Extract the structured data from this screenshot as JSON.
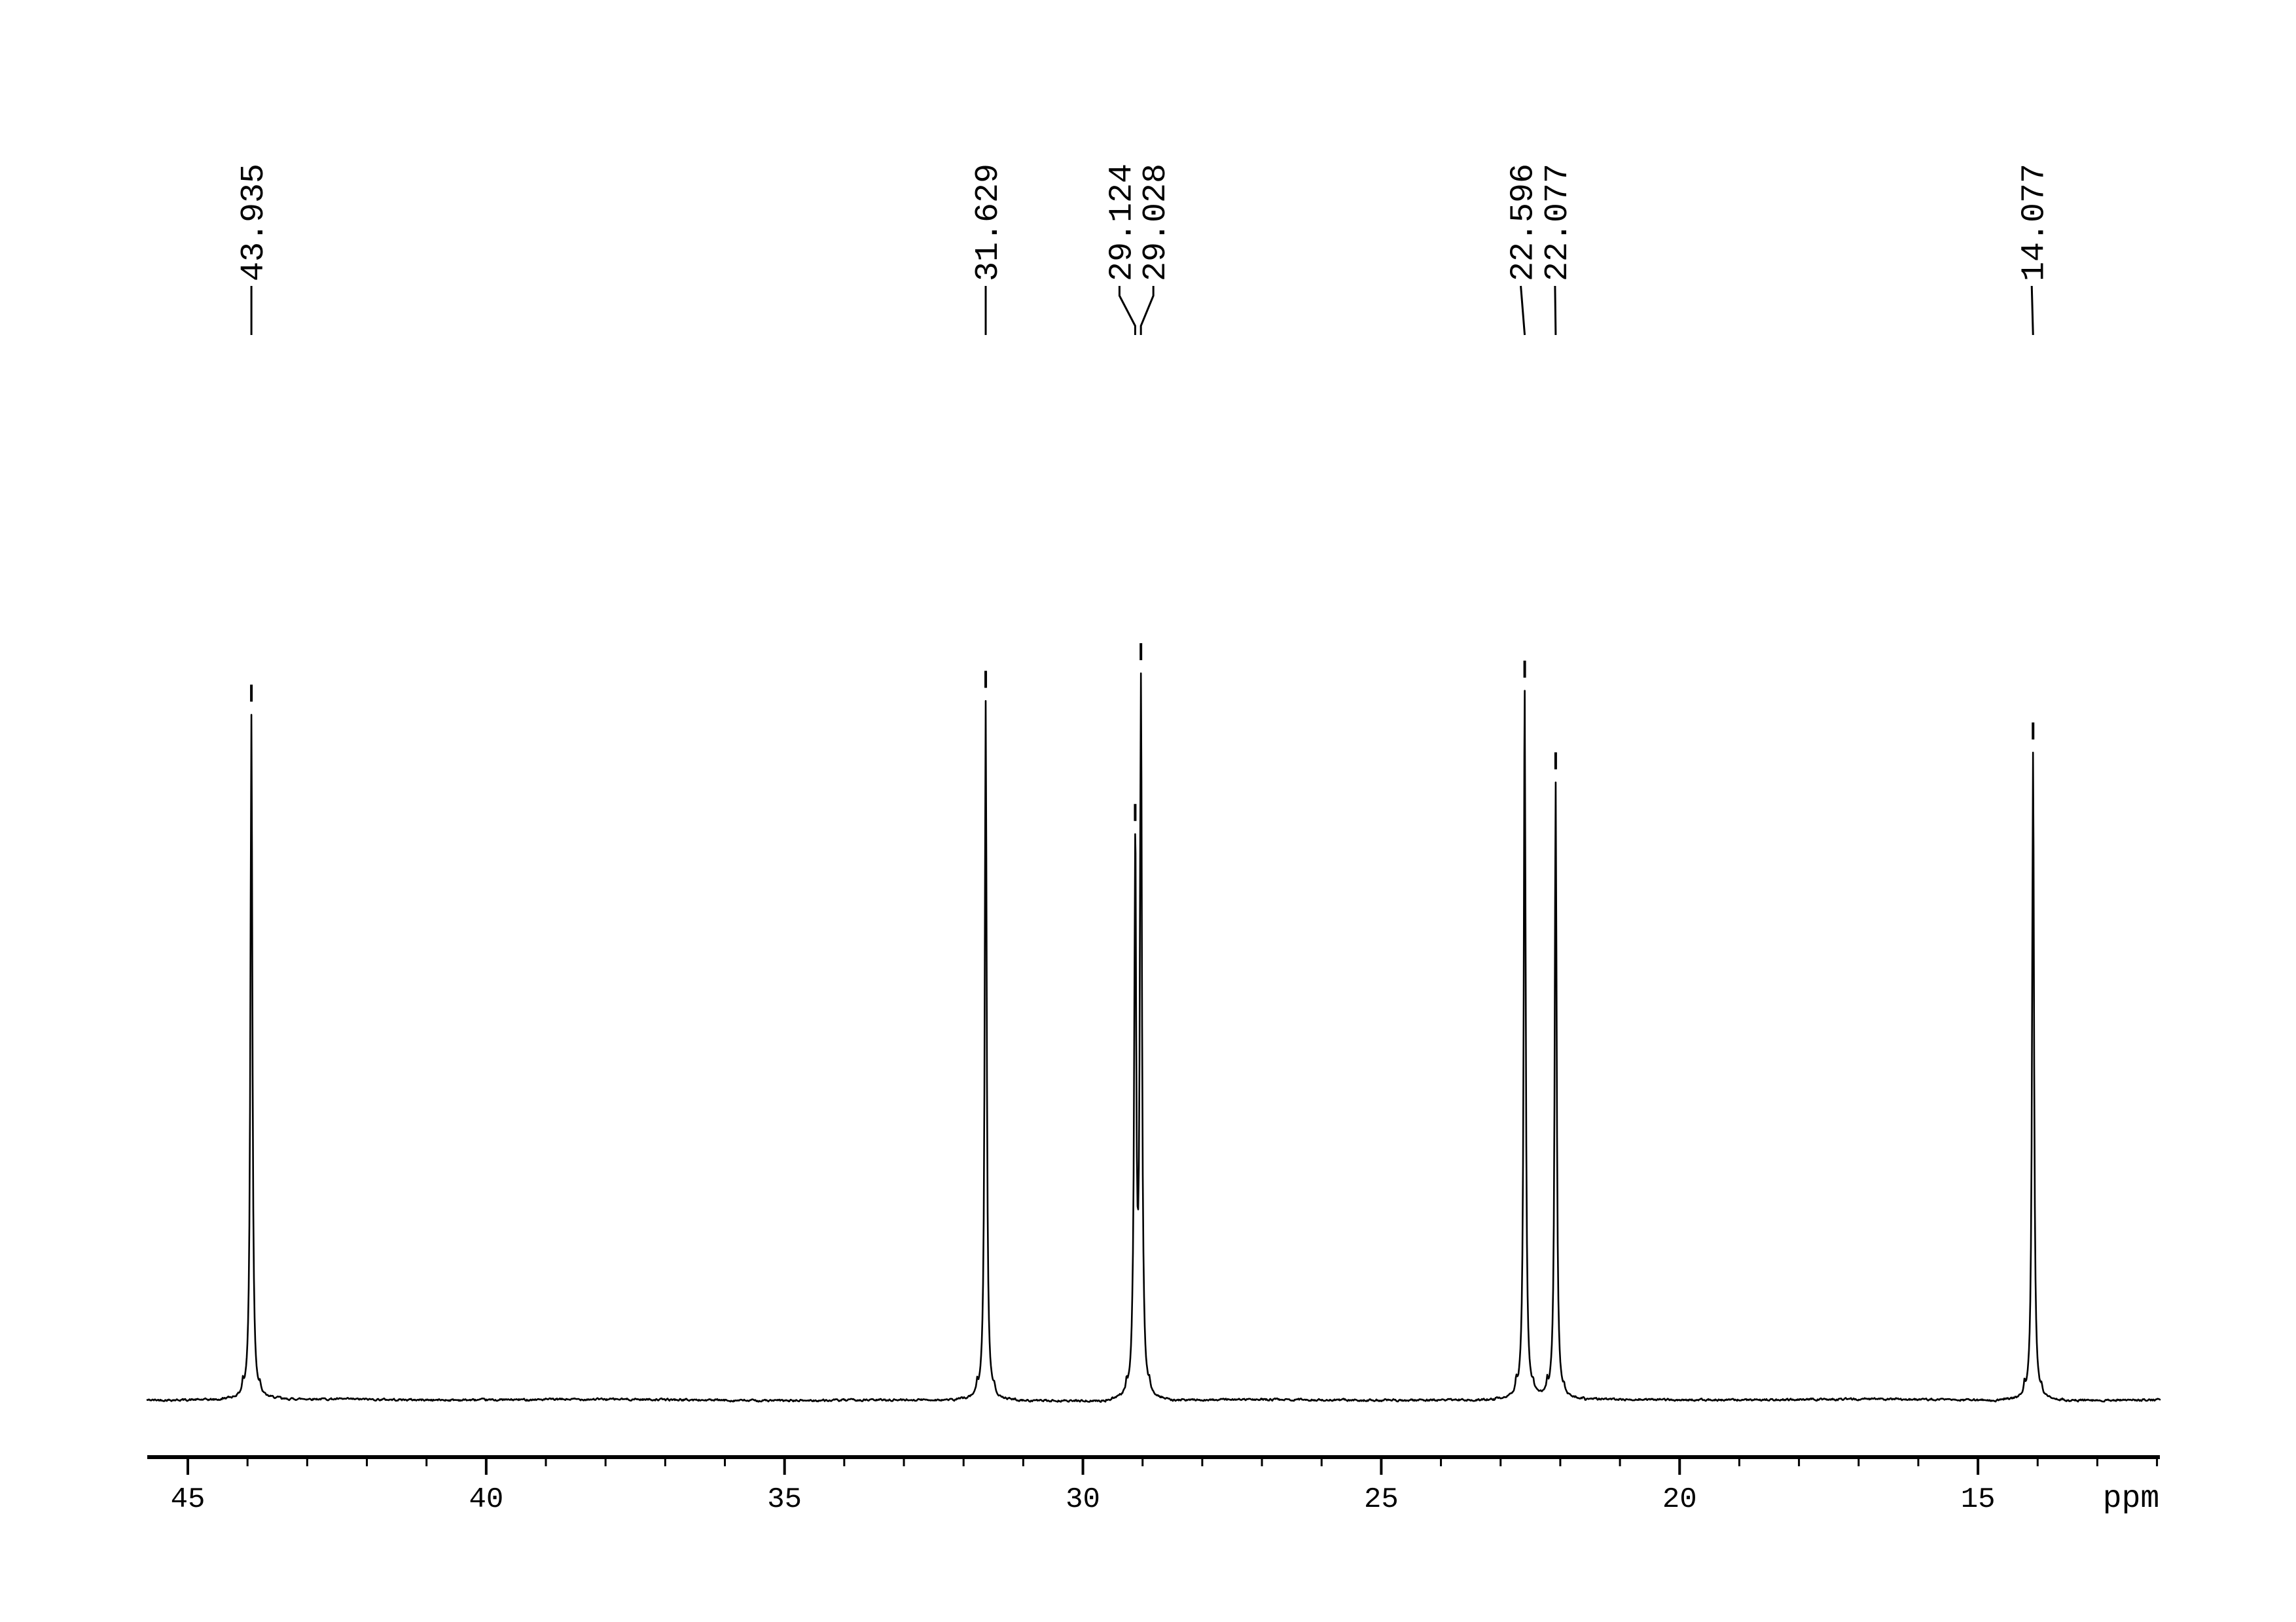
{
  "chart_data": {
    "type": "line",
    "title": "",
    "background_color": "#ffffff",
    "trace_color": "#000000",
    "x_axis": {
      "unit_label": "ppm",
      "inverted": true,
      "range_left_ppm": 45.7,
      "range_right_ppm": 12.0,
      "major_ticks": [
        45,
        40,
        35,
        30,
        25,
        20,
        15
      ],
      "minor_tick_step": 1,
      "minor_tick_min": 12,
      "minor_tick_max": 44
    },
    "y_axis": {
      "visible": false
    },
    "grid": false,
    "legend": false,
    "peaks": [
      {
        "ppm": 43.935,
        "label": "43.935",
        "rel_height": 0.943,
        "label_dx": 0,
        "leader": "straight"
      },
      {
        "ppm": 31.629,
        "label": "31.629",
        "rel_height": 0.962,
        "label_dx": 0,
        "leader": "straight"
      },
      {
        "ppm": 29.124,
        "label": "29.124",
        "rel_height": 0.779,
        "label_dx": -24,
        "leader": "elbow"
      },
      {
        "ppm": 29.028,
        "label": "29.028",
        "rel_height": 1.0,
        "label_dx": 19,
        "leader": "elbow"
      },
      {
        "ppm": 22.596,
        "label": "22.596",
        "rel_height": 0.976,
        "label_dx": -6,
        "leader": "straight"
      },
      {
        "ppm": 22.077,
        "label": "22.077",
        "rel_height": 0.85,
        "label_dx": -1,
        "leader": "straight"
      },
      {
        "ppm": 14.077,
        "label": "14.077",
        "rel_height": 0.891,
        "label_dx": -2,
        "leader": "straight"
      }
    ]
  }
}
